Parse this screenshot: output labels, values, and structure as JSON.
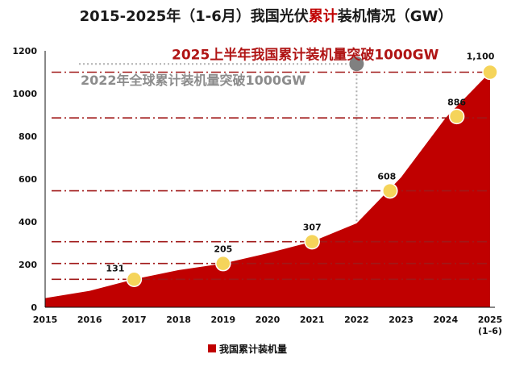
{
  "colors": {
    "area": "#c00000",
    "marker": "#f5d45a",
    "marker_stroke": "#ffffff",
    "ref_line": "#a01818",
    "guide_gray": "#b0b0b0",
    "dot_gray": "#808080"
  },
  "chart_data": {
    "type": "area",
    "title": {
      "prefix": "2015-2025年（1-6月）我国光伏",
      "highlight": "累计",
      "suffix": "装机情况（GW）"
    },
    "x": [
      "2015",
      "2016",
      "2017",
      "2018",
      "2019",
      "2020",
      "2021",
      "2022",
      "2023",
      "2024",
      "2025"
    ],
    "x_sublabels": {
      "2025": "(1-6)"
    },
    "ylim": [
      0,
      1200
    ],
    "yticks": [
      0,
      200,
      400,
      600,
      800,
      1000,
      1200
    ],
    "series": [
      {
        "name": "我国累计装机量",
        "points": [
          {
            "x": 2015.0,
            "y": 43
          },
          {
            "x": 2016.0,
            "y": 77
          },
          {
            "x": 2017.0,
            "y": 131
          },
          {
            "x": 2018.0,
            "y": 174
          },
          {
            "x": 2019.0,
            "y": 205
          },
          {
            "x": 2020.0,
            "y": 253
          },
          {
            "x": 2021.0,
            "y": 307
          },
          {
            "x": 2022.0,
            "y": 393
          },
          {
            "x": 2023.0,
            "y": 608
          },
          {
            "x": 2024.0,
            "y": 886
          },
          {
            "x": 2025.0,
            "y": 1100
          }
        ]
      }
    ],
    "labeled_points": [
      {
        "x": 2017.0,
        "y": 131,
        "label": "131"
      },
      {
        "x": 2019.0,
        "y": 205,
        "label": "205"
      },
      {
        "x": 2021.0,
        "y": 307,
        "label": "307"
      },
      {
        "x": 2022.75,
        "y": 545,
        "label": "608"
      },
      {
        "x": 2024.25,
        "y": 893,
        "label": "886"
      },
      {
        "x": 2025.0,
        "y": 1100,
        "label": "1,100"
      }
    ],
    "reference_lines_y": [
      131,
      205,
      307,
      545,
      886,
      1100
    ],
    "annotations": {
      "china_1000": {
        "text": "2025上半年我国累计装机量突破1000GW",
        "y": 1100
      },
      "global_1000": {
        "text": "2022年全球累计装机量突破1000GW",
        "x": 2022.0,
        "y": 1120
      }
    },
    "legend": {
      "label": "我国累计装机量",
      "position": "bottom-center"
    },
    "grid": false
  }
}
